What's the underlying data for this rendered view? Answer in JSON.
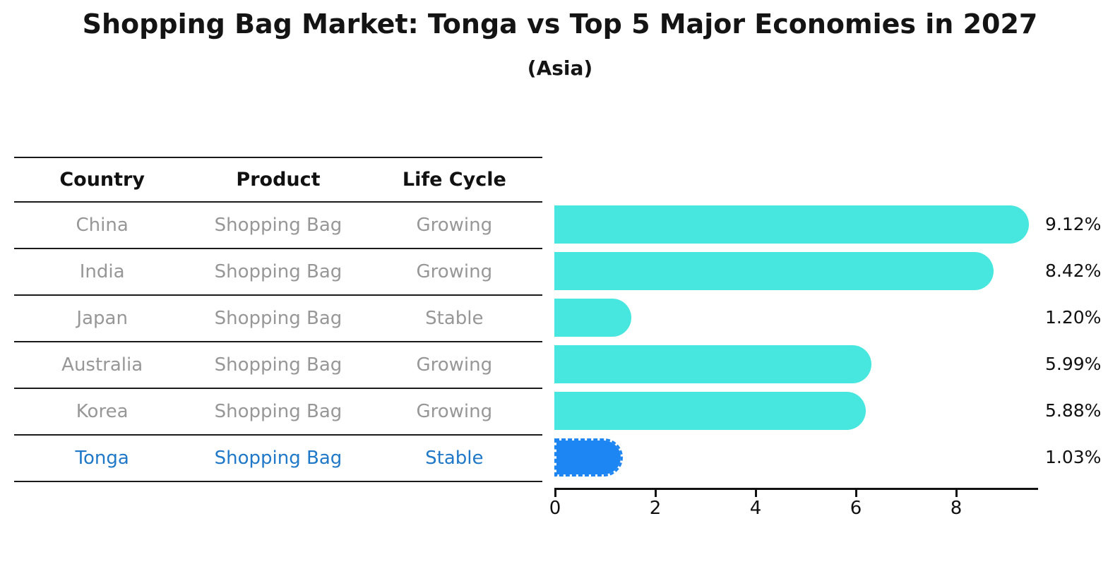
{
  "title": "Shopping Bag Market: Tonga vs Top 5 Major Economies in 2027",
  "subtitle": "(Asia)",
  "table": {
    "headers": [
      "Country",
      "Product",
      "Life Cycle"
    ],
    "rows": [
      {
        "country": "China",
        "product": "Shopping Bag",
        "life_cycle": "Growing",
        "highlight": false
      },
      {
        "country": "India",
        "product": "Shopping Bag",
        "life_cycle": "Growing",
        "highlight": false
      },
      {
        "country": "Japan",
        "product": "Shopping Bag",
        "life_cycle": "Stable",
        "highlight": false
      },
      {
        "country": "Australia",
        "product": "Shopping Bag",
        "life_cycle": "Growing",
        "highlight": false
      },
      {
        "country": "Korea",
        "product": "Shopping Bag",
        "life_cycle": "Growing",
        "highlight": false
      },
      {
        "country": "Tonga",
        "product": "Shopping Bag",
        "life_cycle": "Stable",
        "highlight": true
      }
    ]
  },
  "chart_data": {
    "type": "bar",
    "orientation": "horizontal",
    "title": "Shopping Bag Market: Tonga vs Top 5 Major Economies in 2027",
    "subtitle": "(Asia)",
    "categories": [
      "China",
      "India",
      "Japan",
      "Australia",
      "Korea",
      "Tonga"
    ],
    "values": [
      9.12,
      8.42,
      1.2,
      5.99,
      5.88,
      1.03
    ],
    "value_labels": [
      "9.12%",
      "8.42%",
      "1.20%",
      "5.99%",
      "5.88%",
      "1.03%"
    ],
    "xlabel": "",
    "ylabel": "",
    "xlim": [
      0,
      9.6
    ],
    "xticks": [
      0,
      2,
      4,
      6,
      8
    ],
    "grid": false,
    "legend": null,
    "bar_color": "#47E7DF",
    "highlight_index": 5,
    "highlight_bar_color": "#1E86F2",
    "highlight_bar_style": "dashed-border",
    "highlight_text_color": "#1F78C8"
  },
  "colors": {
    "background": "#ffffff",
    "title_text": "#141414",
    "header_text": "#111111",
    "row_text": "#979797",
    "table_line": "#1a1a1a",
    "axis": "#111111",
    "bar": "#47E7DF",
    "highlight_bar": "#1E86F2",
    "highlight_text": "#1F78C8"
  }
}
